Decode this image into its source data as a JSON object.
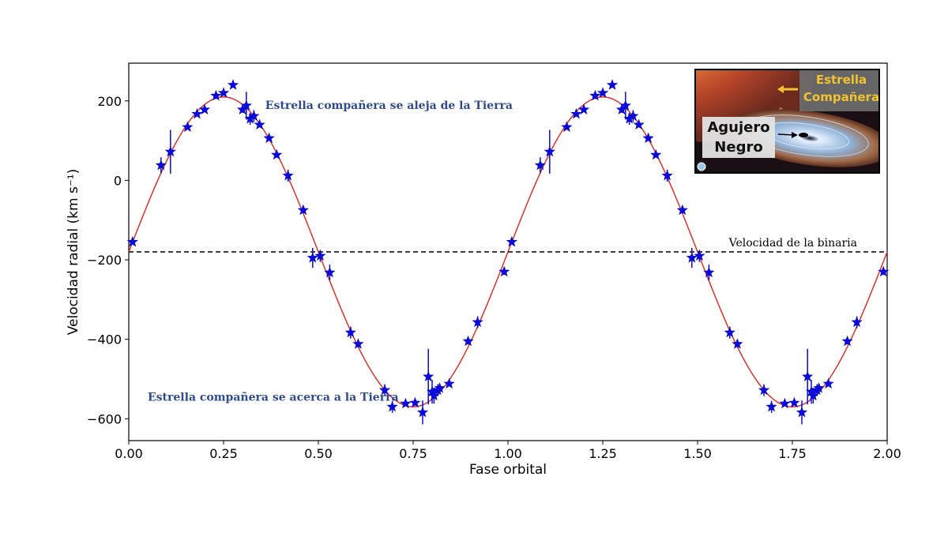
{
  "chart_data": {
    "type": "scatter",
    "xlabel": "Fase orbital",
    "ylabel": "Velocidad radial (km s⁻¹)",
    "xlim": [
      0.0,
      2.0
    ],
    "ylim": [
      -655,
      295
    ],
    "xticks": [
      "0.00",
      "0.25",
      "0.50",
      "0.75",
      "1.00",
      "1.25",
      "1.50",
      "1.75",
      "2.00"
    ],
    "yticks": [
      "200",
      "0",
      "−200",
      "−400",
      "−600"
    ],
    "grid": false,
    "model_curve": {
      "name": "",
      "gamma": -180,
      "amplitude": 390,
      "period_phase": 1.0,
      "phase_of_max": 0.25,
      "color": "#e1251b"
    },
    "binary_velocity_line": {
      "value": -180,
      "label": "Velocidad de la binaria",
      "style": "dashed"
    },
    "series": [
      {
        "name": "",
        "marker": "star",
        "color": "#0a0ad8",
        "x": [
          0.01,
          0.085,
          0.11,
          0.155,
          0.18,
          0.2,
          0.23,
          0.25,
          0.275,
          0.3,
          0.31,
          0.32,
          0.33,
          0.345,
          0.37,
          0.39,
          0.42,
          0.46,
          0.485,
          0.505,
          0.53,
          0.585,
          0.605,
          0.675,
          0.695,
          0.73,
          0.755,
          0.775,
          0.79,
          0.8,
          0.805,
          0.815,
          0.82,
          0.845,
          0.895,
          0.92,
          0.99,
          1.01,
          1.085,
          1.11,
          1.155,
          1.18,
          1.2,
          1.23,
          1.25,
          1.275,
          1.3,
          1.31,
          1.32,
          1.33,
          1.345,
          1.37,
          1.39,
          1.42,
          1.46,
          1.485,
          1.505,
          1.53,
          1.585,
          1.605,
          1.675,
          1.695,
          1.73,
          1.755,
          1.775,
          1.79,
          1.8,
          1.805,
          1.815,
          1.82,
          1.845,
          1.895,
          1.92,
          1.99
        ],
        "y": [
          -155,
          38,
          72,
          134,
          167,
          178,
          213,
          220,
          240,
          178,
          188,
          155,
          162,
          140,
          106,
          64,
          12,
          -75,
          -195,
          -190,
          -232,
          -383,
          -412,
          -528,
          -570,
          -562,
          -560,
          -584,
          -494,
          -532,
          -542,
          -528,
          -523,
          -512,
          -405,
          -357,
          -230,
          -155,
          38,
          72,
          134,
          167,
          178,
          213,
          220,
          240,
          178,
          188,
          155,
          162,
          140,
          106,
          64,
          12,
          -75,
          -195,
          -190,
          -232,
          -383,
          -412,
          -528,
          -570,
          -562,
          -560,
          -584,
          -494,
          -532,
          -542,
          -528,
          -523,
          -512,
          -405,
          -357,
          -230
        ],
        "yerr": [
          5,
          20,
          55,
          6,
          5,
          5,
          8,
          5,
          5,
          8,
          35,
          15,
          15,
          5,
          5,
          5,
          15,
          8,
          25,
          15,
          20,
          15,
          8,
          15,
          15,
          5,
          5,
          30,
          70,
          30,
          20,
          15,
          10,
          5,
          8,
          15,
          8,
          5,
          20,
          55,
          6,
          5,
          5,
          8,
          5,
          5,
          8,
          35,
          15,
          15,
          5,
          5,
          5,
          15,
          8,
          25,
          15,
          20,
          15,
          8,
          15,
          15,
          5,
          5,
          30,
          70,
          30,
          20,
          15,
          10,
          5,
          8,
          15,
          8
        ]
      }
    ],
    "annotations": [
      {
        "text": "Estrella compañera se aleja de la Tierra",
        "x": 0.36,
        "y": 190
      },
      {
        "text": "Estrella compañera se acerca a la Tierra",
        "x": 0.05,
        "y": -545
      }
    ],
    "inset": {
      "label_star_line1": "Estrella",
      "label_star_line2": "Compañera",
      "label_bh_line1": "Agujero",
      "label_bh_line2": "Negro"
    }
  }
}
